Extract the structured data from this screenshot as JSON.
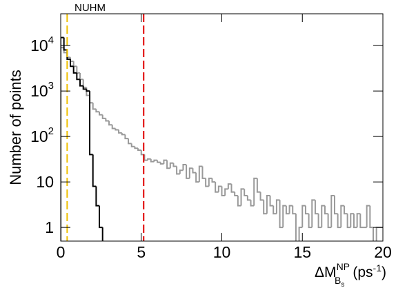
{
  "chart_data": {
    "type": "histogram",
    "title": "NUHM",
    "ylabel": "Number of points",
    "xlabel": {
      "main": "ΔM",
      "sup": "NP",
      "sub": "B",
      "subsub": "s",
      "unit": "(ps",
      "unit_sup": "-1",
      "close": ")"
    },
    "log_y": true,
    "xlim": [
      0,
      20
    ],
    "xticks": [
      0,
      5,
      10,
      15,
      20
    ],
    "ylim": [
      0.5,
      50000
    ],
    "yticks": [
      1,
      10,
      {
        "value": 100,
        "label": "10",
        "sup": "2"
      },
      {
        "value": 1000,
        "label": "10",
        "sup": "3"
      },
      {
        "value": 10000,
        "label": "10",
        "sup": "4"
      }
    ],
    "bins": [
      0,
      0.2,
      0.4,
      0.6,
      0.8,
      1,
      1.2,
      1.4,
      1.6,
      1.8,
      2,
      2.2,
      2.4,
      2.6,
      2.8,
      3,
      3.2,
      3.4,
      3.6,
      3.8,
      4,
      4.2,
      4.4,
      4.6,
      4.8,
      5,
      5.2,
      5.4,
      5.6,
      5.8,
      6,
      6.2,
      6.4,
      6.6,
      6.8,
      7,
      7.2,
      7.4,
      7.6,
      7.8,
      8,
      8.2,
      8.4,
      8.6,
      8.8,
      9,
      9.2,
      9.4,
      9.6,
      9.8,
      10,
      10.2,
      10.4,
      10.6,
      10.8,
      11,
      11.2,
      11.4,
      11.6,
      11.8,
      12,
      12.2,
      12.4,
      12.6,
      12.8,
      13,
      13.2,
      13.4,
      13.6,
      13.8,
      14,
      14.2,
      14.4,
      14.6,
      14.8,
      15,
      15.2,
      15.4,
      15.6,
      15.8,
      16,
      16.2,
      16.4,
      16.6,
      16.8,
      17,
      17.2,
      17.4,
      17.6,
      17.8,
      18,
      18.2,
      18.4,
      18.6,
      18.8,
      19,
      19.2,
      19.4,
      19.6,
      19.8,
      20
    ],
    "series": [
      {
        "color": "#999999",
        "values": [
          9000,
          7000,
          5500,
          4500,
          3500,
          2500,
          1800,
          1200,
          800,
          550,
          400,
          350,
          300,
          250,
          220,
          180,
          150,
          140,
          120,
          110,
          90,
          70,
          60,
          55,
          50,
          40,
          30,
          32,
          28,
          30,
          27,
          25,
          30,
          20,
          26,
          22,
          15,
          18,
          24,
          12,
          20,
          16,
          10,
          22,
          12,
          8,
          12,
          10,
          6,
          8,
          5,
          7,
          9,
          6,
          5,
          3,
          7,
          5,
          4,
          3,
          12,
          6,
          4,
          2,
          5,
          3,
          2,
          4,
          1,
          3,
          2,
          3,
          2,
          0,
          1,
          3,
          2,
          1,
          4,
          2,
          1,
          3,
          2,
          1,
          5,
          2,
          1,
          3,
          2,
          1,
          2,
          1,
          2,
          1,
          1,
          3,
          1,
          0,
          1,
          1
        ]
      },
      {
        "color": "#000000",
        "values": [
          15000,
          8000,
          5000,
          3500,
          2500,
          1800,
          1300,
          1100,
          1000,
          40,
          8,
          3,
          1,
          0,
          0,
          0,
          0,
          0,
          0,
          0,
          0,
          0,
          0,
          0,
          0,
          0,
          0,
          0,
          0,
          0,
          0,
          0,
          0,
          0,
          0,
          0,
          0,
          0,
          0,
          0,
          0,
          0,
          0,
          0,
          0,
          0,
          0,
          0,
          0,
          0,
          0,
          0,
          0,
          0,
          0,
          0,
          0,
          0,
          0,
          0,
          0,
          0,
          0,
          0,
          0,
          0,
          0,
          0,
          0,
          0,
          0,
          0,
          0,
          0,
          0,
          0,
          0,
          0,
          0,
          0,
          0,
          0,
          0,
          0,
          0,
          0,
          0,
          0,
          0,
          0,
          0,
          0,
          0,
          0,
          0,
          0,
          0,
          0,
          0,
          0
        ]
      }
    ],
    "vlines": [
      {
        "x": 0.4,
        "color": "#f0c000"
      },
      {
        "x": 5.15,
        "color": "#e00000"
      }
    ]
  }
}
